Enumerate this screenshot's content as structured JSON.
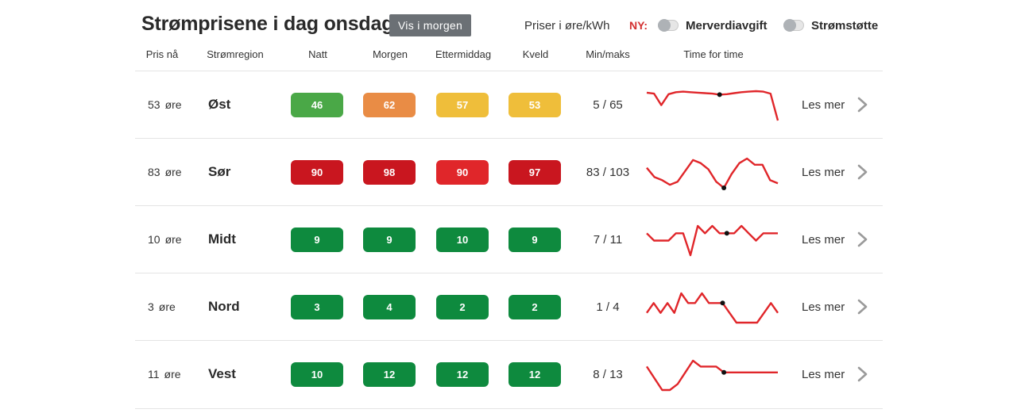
{
  "header": {
    "title": "Strømprisene i dag onsdag",
    "tomorrow_button": "Vis i morgen",
    "unit_label": "Priser i øre/kWh",
    "new_label": "NY:",
    "toggles": [
      {
        "label": "Merverdiavgift",
        "on": false
      },
      {
        "label": "Strømstøtte",
        "on": false
      }
    ]
  },
  "columns": [
    "Pris nå",
    "Strømregion",
    "Natt",
    "Morgen",
    "Ettermiddag",
    "Kveld",
    "Min/maks",
    "Time for time"
  ],
  "colors": {
    "green": "#4aa847",
    "dark_green": "#0e8a3e",
    "orange": "#e98c45",
    "yellow": "#efbe3a",
    "red": "#c9161f",
    "bright_red": "#e0262a",
    "spark": "#e0262a",
    "chevron": "#9a9a9a"
  },
  "rows": [
    {
      "price_now": "53",
      "unit": "øre",
      "region": "Øst",
      "periods": [
        {
          "value": "46",
          "color": "#4aa847"
        },
        {
          "value": "62",
          "color": "#e98c45"
        },
        {
          "value": "57",
          "color": "#efbe3a"
        },
        {
          "value": "53",
          "color": "#efbe3a"
        }
      ],
      "minmax": "5 / 65",
      "link": "Les mer",
      "hourly": [
        61,
        59,
        36,
        58,
        62,
        63,
        62,
        61,
        60,
        59,
        57,
        58,
        60,
        62,
        63,
        64,
        63,
        59,
        5
      ],
      "marker_hour": 10
    },
    {
      "price_now": "83",
      "unit": "øre",
      "region": "Sør",
      "periods": [
        {
          "value": "90",
          "color": "#c9161f"
        },
        {
          "value": "98",
          "color": "#c9161f"
        },
        {
          "value": "90",
          "color": "#e0262a"
        },
        {
          "value": "97",
          "color": "#c9161f"
        }
      ],
      "minmax": "83 / 103",
      "link": "Les mer",
      "hourly": [
        97,
        91,
        89,
        86,
        88,
        95,
        102,
        100,
        96,
        88,
        84,
        93,
        100,
        103,
        99,
        99,
        89,
        87
      ],
      "marker_hour": 10
    },
    {
      "price_now": "10",
      "unit": "øre",
      "region": "Midt",
      "periods": [
        {
          "value": "9",
          "color": "#0e8a3e"
        },
        {
          "value": "9",
          "color": "#0e8a3e"
        },
        {
          "value": "10",
          "color": "#0e8a3e"
        },
        {
          "value": "9",
          "color": "#0e8a3e"
        }
      ],
      "minmax": "7 / 11",
      "link": "Les mer",
      "hourly": [
        10,
        9,
        9,
        9,
        10,
        10,
        7,
        11,
        10,
        11,
        10,
        10,
        10,
        11,
        10,
        9,
        10,
        10,
        10
      ],
      "marker_hour": 11
    },
    {
      "price_now": "3",
      "unit": "øre",
      "region": "Nord",
      "periods": [
        {
          "value": "3",
          "color": "#0e8a3e"
        },
        {
          "value": "4",
          "color": "#0e8a3e"
        },
        {
          "value": "2",
          "color": "#0e8a3e"
        },
        {
          "value": "2",
          "color": "#0e8a3e"
        }
      ],
      "minmax": "1 / 4",
      "link": "Les mer",
      "hourly": [
        2,
        3,
        2,
        3,
        2,
        4,
        3,
        3,
        4,
        3,
        3,
        3,
        2,
        1,
        1,
        1,
        1,
        2,
        3,
        2
      ],
      "marker_hour": 11
    },
    {
      "price_now": "11",
      "unit": "øre",
      "region": "Vest",
      "periods": [
        {
          "value": "10",
          "color": "#0e8a3e"
        },
        {
          "value": "12",
          "color": "#0e8a3e"
        },
        {
          "value": "12",
          "color": "#0e8a3e"
        },
        {
          "value": "12",
          "color": "#0e8a3e"
        }
      ],
      "minmax": "8 / 13",
      "link": "Les mer",
      "hourly": [
        12,
        10,
        8,
        8,
        9,
        11,
        13,
        12,
        12,
        12,
        11,
        11,
        11,
        11,
        11,
        11,
        11,
        11
      ],
      "marker_hour": 10
    }
  ]
}
